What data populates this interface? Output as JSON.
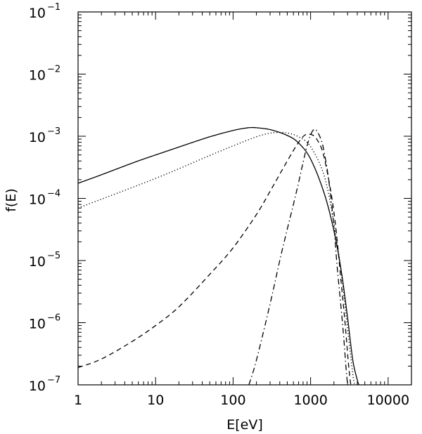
{
  "chart_data": {
    "type": "line",
    "xlabel": "E[eV]",
    "ylabel": "f(E)",
    "x_scale": "log",
    "y_scale": "log",
    "xlim": [
      1,
      20000
    ],
    "ylim": [
      1e-07,
      0.1
    ],
    "grid": false,
    "x_ticks": [
      {
        "value": 1,
        "label": "1"
      },
      {
        "value": 10,
        "label": "10"
      },
      {
        "value": 100,
        "label": "100"
      },
      {
        "value": 1000,
        "label": "1000"
      },
      {
        "value": 10000,
        "label": "10000"
      }
    ],
    "y_ticks": [
      {
        "value": 1e-07,
        "base": "10",
        "exp": "−7"
      },
      {
        "value": 1e-06,
        "base": "10",
        "exp": "−6"
      },
      {
        "value": 1e-05,
        "base": "10",
        "exp": "−5"
      },
      {
        "value": 0.0001,
        "base": "10",
        "exp": "−4"
      },
      {
        "value": 0.001,
        "base": "10",
        "exp": "−3"
      },
      {
        "value": 0.01,
        "base": "10",
        "exp": "−2"
      },
      {
        "value": 0.1,
        "base": "10",
        "exp": "−1"
      }
    ],
    "series": [
      {
        "style": "solid",
        "x": [
          1,
          2,
          5,
          10,
          20,
          50,
          100,
          150,
          175,
          200,
          300,
          500,
          700,
          1000,
          1500,
          2000,
          2500,
          3000,
          3500,
          4000,
          4200
        ],
        "y": [
          0.000175,
          0.00024,
          0.00037,
          0.0005,
          0.00067,
          0.00098,
          0.00124,
          0.00136,
          0.00138,
          0.00137,
          0.00128,
          0.00103,
          0.00078,
          0.00043,
          0.00012,
          3e-05,
          6.5e-06,
          1.2e-06,
          2.5e-07,
          1.2e-07,
          1e-07
        ]
      },
      {
        "style": "dotted",
        "x": [
          1,
          2,
          5,
          10,
          20,
          50,
          100,
          200,
          300,
          400,
          500,
          700,
          1000,
          1500,
          2000,
          2500,
          3000,
          3500,
          3700
        ],
        "y": [
          7e-05,
          9.7e-05,
          0.00015,
          0.00021,
          0.0003,
          0.00049,
          0.0007,
          0.00098,
          0.00112,
          0.00115,
          0.00113,
          0.00098,
          0.00068,
          0.00023,
          4e-05,
          6e-06,
          8e-07,
          1.5e-07,
          1e-07
        ]
      },
      {
        "style": "dashed",
        "x": [
          1,
          2,
          5,
          10,
          20,
          50,
          100,
          200,
          300,
          500,
          700,
          850,
          1000,
          1200,
          1500,
          2000,
          2500,
          2800,
          3100,
          3300
        ],
        "y": [
          1.9e-07,
          2.6e-07,
          5e-07,
          9e-07,
          1.8e-06,
          6e-06,
          1.6e-05,
          5.5e-05,
          0.00013,
          0.0004,
          0.0008,
          0.00105,
          0.00107,
          0.0009,
          0.00045,
          6e-05,
          4e-06,
          9e-07,
          2e-07,
          1e-07
        ]
      },
      {
        "style": "dashdot",
        "x": [
          160,
          200,
          300,
          400,
          500,
          600,
          700,
          800,
          900,
          1000,
          1100,
          1200,
          1400,
          1600,
          1800,
          2000,
          2200,
          2500,
          2700,
          2850,
          3000
        ],
        "y": [
          1e-07,
          2.5e-07,
          2e-06,
          1e-05,
          3.2e-05,
          8e-05,
          0.00018,
          0.00038,
          0.0007,
          0.00105,
          0.00128,
          0.00122,
          0.0008,
          0.00035,
          0.00012,
          3.5e-05,
          8e-06,
          1.5e-06,
          5e-07,
          2e-07,
          1e-07
        ]
      }
    ]
  }
}
